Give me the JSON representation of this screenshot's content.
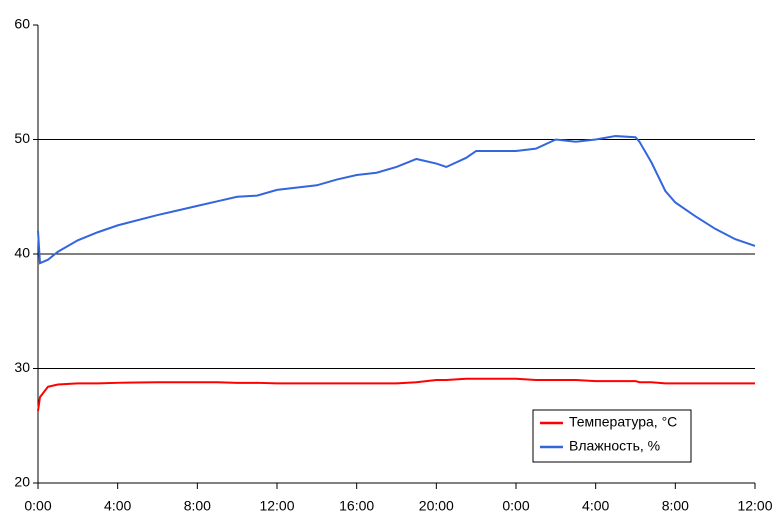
{
  "chart_data": {
    "type": "line",
    "x": [
      0,
      0.1,
      0.5,
      1,
      2,
      3,
      4,
      6,
      7,
      8,
      9,
      10,
      11,
      12,
      14,
      15,
      16,
      17,
      18,
      19,
      20,
      20.5,
      21.5,
      22,
      24,
      25,
      26,
      27,
      28,
      29,
      30,
      30.2,
      30.8,
      31.5,
      32,
      33,
      34,
      35,
      36
    ],
    "series": [
      {
        "name": "Температура, °C",
        "color": "#ff0000",
        "values": [
          26.3,
          27.5,
          28.4,
          28.6,
          28.7,
          28.7,
          28.75,
          28.8,
          28.8,
          28.8,
          28.8,
          28.75,
          28.75,
          28.7,
          28.7,
          28.7,
          28.7,
          28.7,
          28.7,
          28.8,
          29.0,
          29.0,
          29.1,
          29.1,
          29.1,
          29.0,
          29.0,
          29.0,
          28.9,
          28.9,
          28.9,
          28.8,
          28.8,
          28.7,
          28.7,
          28.7,
          28.7,
          28.7,
          28.7
        ]
      },
      {
        "name": "Влажность, %",
        "color": "#3366dd",
        "values": [
          42,
          39.2,
          39.5,
          40.2,
          41.2,
          41.9,
          42.5,
          43.4,
          43.8,
          44.2,
          44.6,
          45,
          45.1,
          45.6,
          46,
          46.5,
          46.9,
          47.1,
          47.6,
          48.3,
          47.9,
          47.6,
          48.4,
          49,
          49,
          49.2,
          50,
          49.8,
          50,
          50.3,
          50.2,
          49.8,
          48,
          45.5,
          44.5,
          43.3,
          42.2,
          41.3,
          40.7
        ]
      }
    ],
    "xlim": [
      0,
      36
    ],
    "xticks": [
      {
        "value": 0,
        "label": "0:00"
      },
      {
        "value": 4,
        "label": "4:00"
      },
      {
        "value": 8,
        "label": "8:00"
      },
      {
        "value": 12,
        "label": "12:00"
      },
      {
        "value": 16,
        "label": "16:00"
      },
      {
        "value": 20,
        "label": "20:00"
      },
      {
        "value": 24,
        "label": "0:00"
      },
      {
        "value": 28,
        "label": "4:00"
      },
      {
        "value": 32,
        "label": "8:00"
      },
      {
        "value": 36,
        "label": "12:00"
      }
    ],
    "ylim": [
      20,
      60
    ],
    "yticks": [
      20,
      30,
      40,
      50,
      60
    ],
    "grid": true,
    "legend": "lower right"
  }
}
